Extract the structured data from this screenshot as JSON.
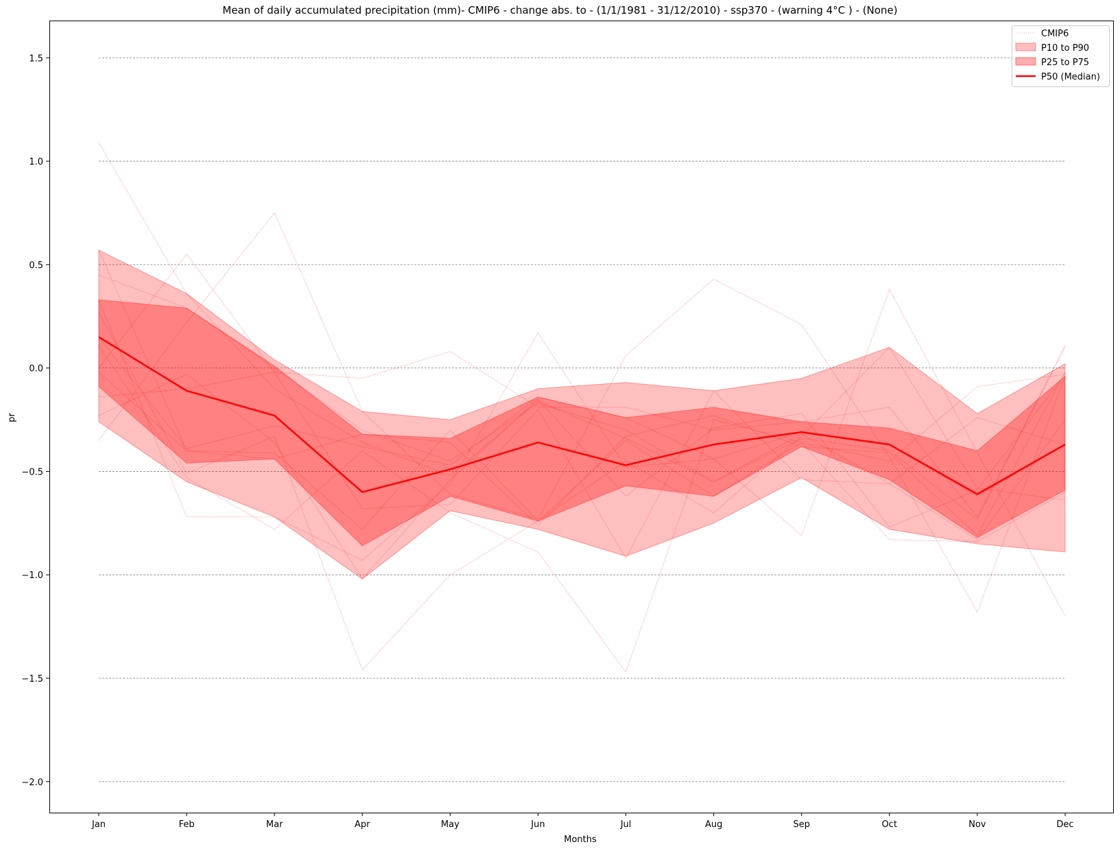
{
  "chart_data": {
    "type": "line",
    "title": "Mean of daily accumulated precipitation (mm)- CMIP6 - change abs. to - (1/1/1981 - 31/12/2010)  - ssp370  - (warning 4°C ) - (None)",
    "xlabel": "Months",
    "ylabel": "pr",
    "categories": [
      "Jan",
      "Feb",
      "Mar",
      "Apr",
      "May",
      "Jun",
      "Jul",
      "Aug",
      "Sep",
      "Oct",
      "Nov",
      "Dec"
    ],
    "ylim": [
      -2.15,
      1.68
    ],
    "yticks": [
      -2.0,
      -1.5,
      -1.0,
      -0.5,
      0.0,
      0.5,
      1.0,
      1.5
    ],
    "ytick_labels": [
      "−2.0",
      "−1.5",
      "−1.0",
      "−0.5",
      "0.0",
      "0.5",
      "1.0",
      "1.5"
    ],
    "grid": "horizontal dashed",
    "legend_position": "top-right",
    "legend": [
      "CMIP6",
      "P10 to P90",
      "P25 to P75",
      "P50 (Median)"
    ],
    "colors": {
      "main": "#ff0000",
      "p10_p90_fill": "#ff0000",
      "p25_p75_fill": "#ff0000",
      "grid": "#808080"
    },
    "p10_p90": {
      "name": "P10 to P90",
      "low": [
        -0.26,
        -0.55,
        -0.72,
        -1.02,
        -0.69,
        -0.78,
        -0.91,
        -0.75,
        -0.53,
        -0.78,
        -0.85,
        -0.89
      ],
      "high": [
        0.57,
        0.36,
        0.04,
        -0.21,
        -0.25,
        -0.1,
        -0.07,
        -0.11,
        -0.05,
        0.1,
        -0.22,
        0.02
      ]
    },
    "p25_p75": {
      "name": "P25 to P75",
      "low": [
        -0.09,
        -0.46,
        -0.44,
        -0.86,
        -0.62,
        -0.74,
        -0.57,
        -0.62,
        -0.38,
        -0.54,
        -0.82,
        -0.59
      ],
      "high": [
        0.33,
        0.29,
        0.01,
        -0.32,
        -0.34,
        -0.14,
        -0.24,
        -0.19,
        -0.26,
        -0.29,
        -0.4,
        -0.04
      ]
    },
    "median": {
      "name": "P50 (Median)",
      "values": [
        0.15,
        -0.11,
        -0.23,
        -0.6,
        -0.49,
        -0.36,
        -0.47,
        -0.37,
        -0.31,
        -0.37,
        -0.61,
        -0.37
      ]
    },
    "members_name": "CMIP6",
    "members": [
      [
        1.09,
        0.36,
        -0.1,
        -0.36,
        -0.52,
        -0.16,
        -0.34,
        -0.55,
        -0.34,
        -0.4,
        -0.73,
        0.11
      ],
      [
        -0.35,
        0.22,
        0.75,
        -0.21,
        -0.61,
        -0.73,
        0.06,
        0.43,
        0.21,
        -0.43,
        -1.18,
        -0.04
      ],
      [
        -0.14,
        -0.1,
        -0.02,
        -0.05,
        0.08,
        -0.19,
        -0.19,
        -0.3,
        -0.26,
        -0.19,
        -0.72,
        0.1
      ],
      [
        0.45,
        0.29,
        0.0,
        -0.3,
        -0.45,
        -0.17,
        -0.3,
        -0.55,
        -0.32,
        -0.56,
        -0.83,
        -0.25
      ],
      [
        0.57,
        -0.4,
        -0.41,
        -0.78,
        -0.3,
        -0.74,
        -0.45,
        -0.7,
        -0.33,
        0.1,
        -0.58,
        -0.64
      ],
      [
        0.33,
        -0.72,
        -0.72,
        -0.93,
        -0.56,
        0.17,
        -0.48,
        -0.44,
        -0.81,
        0.38,
        -0.41,
        -1.2
      ],
      [
        0.0,
        0.55,
        -0.02,
        -0.68,
        -0.66,
        -0.2,
        -0.92,
        -0.11,
        -0.54,
        -0.56,
        -0.24,
        -0.37
      ],
      [
        0.27,
        -0.51,
        -0.33,
        -1.46,
        -1.0,
        -0.74,
        -0.35,
        -0.62,
        -0.36,
        -0.45,
        -0.09,
        -0.03
      ],
      [
        0.11,
        -0.53,
        -0.78,
        -0.4,
        -0.7,
        -0.89,
        -1.47,
        -0.25,
        -0.36,
        -0.83,
        -0.84,
        -0.6
      ],
      [
        -0.23,
        -0.03,
        -0.36,
        -1.02,
        -0.54,
        -0.15,
        -0.62,
        -0.29,
        -0.22,
        -0.77,
        -0.59,
        -0.03
      ],
      [
        0.15,
        -0.39,
        -0.28,
        -0.38,
        -0.47,
        -0.14,
        -0.24,
        -0.44,
        -0.31,
        -0.37,
        -0.62,
        -0.37
      ],
      [
        -0.02,
        -0.4,
        -0.44,
        -0.32,
        -0.36,
        -0.76,
        -0.33,
        -0.23,
        -0.38,
        -0.41,
        -0.81,
        -0.02
      ]
    ]
  }
}
